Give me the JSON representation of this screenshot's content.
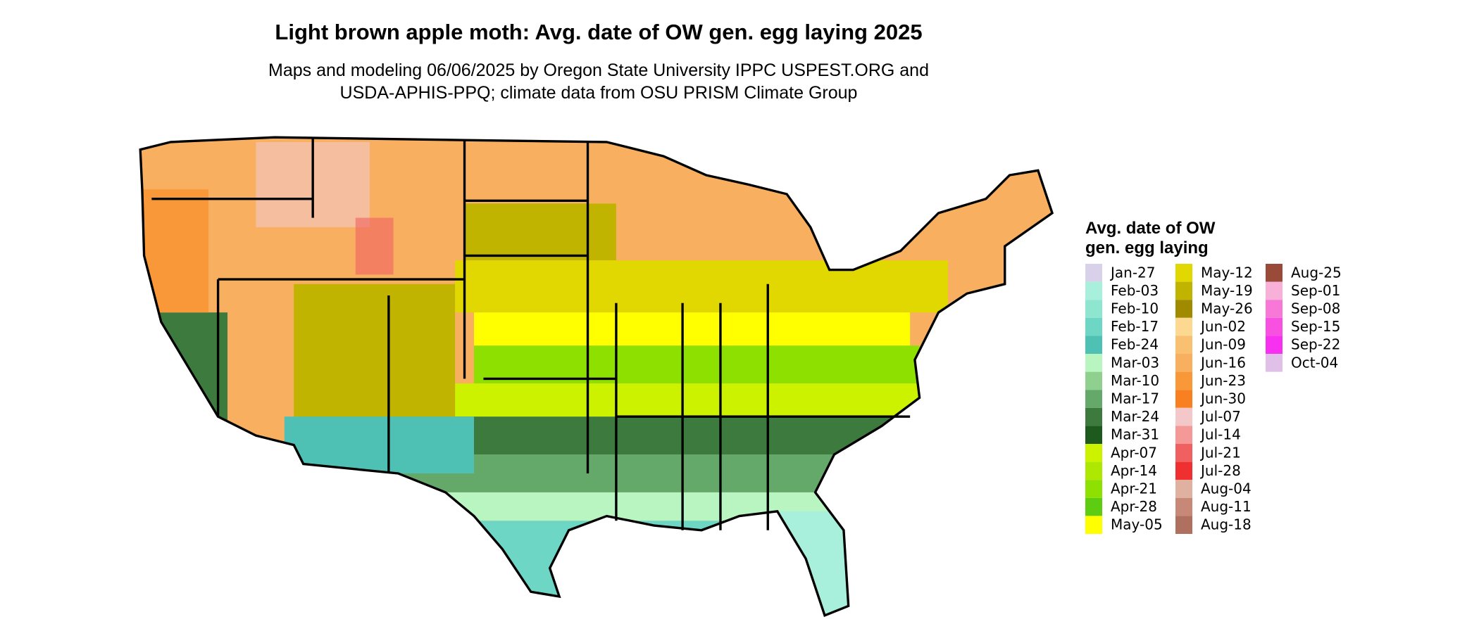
{
  "header": {
    "title": "Light brown apple moth: Avg. date of OW gen. egg laying 2025",
    "subtitle": [
      "Maps and modeling 06/06/2025 by Oregon State University IPPC USPEST.ORG and",
      "USDA-APHIS-PPQ; climate data from OSU PRISM Climate Group"
    ]
  },
  "legend": {
    "title": [
      "Avg. date of OW",
      "gen. egg laying"
    ],
    "items": [
      {
        "label": "Jan-27",
        "color": "#d9d0ea"
      },
      {
        "label": "Feb-03",
        "color": "#a8f0dc"
      },
      {
        "label": "Feb-10",
        "color": "#8ee6d0"
      },
      {
        "label": "Feb-17",
        "color": "#6dd6c4"
      },
      {
        "label": "Feb-24",
        "color": "#4ec0b4"
      },
      {
        "label": "Mar-03",
        "color": "#b8f5c0"
      },
      {
        "label": "Mar-10",
        "color": "#8fd08f"
      },
      {
        "label": "Mar-17",
        "color": "#64a86a"
      },
      {
        "label": "Mar-24",
        "color": "#3d7a3e"
      },
      {
        "label": "Mar-31",
        "color": "#1e5a1e"
      },
      {
        "label": "Apr-07",
        "color": "#ccf200"
      },
      {
        "label": "Apr-14",
        "color": "#aee800"
      },
      {
        "label": "Apr-21",
        "color": "#8ee000"
      },
      {
        "label": "Apr-28",
        "color": "#5ecc10"
      },
      {
        "label": "May-05",
        "color": "#ffff00"
      },
      {
        "label": "May-12",
        "color": "#e0d800"
      },
      {
        "label": "May-19",
        "color": "#c0b400"
      },
      {
        "label": "May-26",
        "color": "#a08a00"
      },
      {
        "label": "Jun-02",
        "color": "#fcd890"
      },
      {
        "label": "Jun-09",
        "color": "#f8c070"
      },
      {
        "label": "Jun-16",
        "color": "#f8b060"
      },
      {
        "label": "Jun-23",
        "color": "#f89838"
      },
      {
        "label": "Jun-30",
        "color": "#f88020"
      },
      {
        "label": "Jul-07",
        "color": "#f4c8c8"
      },
      {
        "label": "Jul-14",
        "color": "#f49898"
      },
      {
        "label": "Jul-21",
        "color": "#f06060"
      },
      {
        "label": "Jul-28",
        "color": "#f03030"
      },
      {
        "label": "Aug-04",
        "color": "#e0b0a0"
      },
      {
        "label": "Aug-11",
        "color": "#c88878"
      },
      {
        "label": "Aug-18",
        "color": "#b07060"
      },
      {
        "label": "Aug-25",
        "color": "#9a4a38"
      },
      {
        "label": "Sep-01",
        "color": "#f8b0d8"
      },
      {
        "label": "Sep-08",
        "color": "#f878d8"
      },
      {
        "label": "Sep-15",
        "color": "#f850e0"
      },
      {
        "label": "Sep-22",
        "color": "#f830f0"
      },
      {
        "label": "Oct-04",
        "color": "#e0c0e8"
      }
    ]
  }
}
